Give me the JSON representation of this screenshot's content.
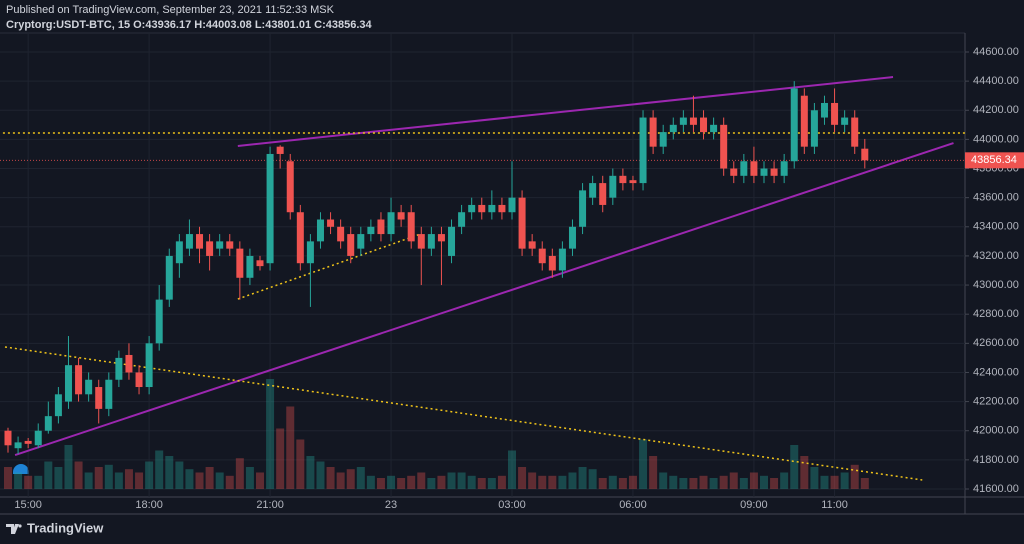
{
  "chart_data": {
    "type": "candlestick",
    "title": "Published on TradingView.com, September 23, 2021 11:52:33 MSK",
    "subtitle": "Cryptorg:USDT-BTC, 15 O:43936.17 H:44003.08 L:43801.01 C:43856.34",
    "brand": "TradingView",
    "categories": [
      null,
      null,
      "15:00",
      null,
      null,
      null,
      null,
      null,
      null,
      null,
      null,
      null,
      null,
      null,
      "18:00",
      null,
      null,
      null,
      null,
      null,
      null,
      null,
      null,
      null,
      null,
      null,
      "21:00",
      null,
      null,
      null,
      null,
      null,
      null,
      null,
      null,
      null,
      null,
      null,
      "23",
      null,
      null,
      null,
      null,
      null,
      null,
      null,
      null,
      null,
      null,
      null,
      "03:00",
      null,
      null,
      null,
      null,
      null,
      null,
      null,
      null,
      null,
      null,
      null,
      "06:00",
      null,
      null,
      null,
      null,
      null,
      null,
      null,
      null,
      null,
      null,
      null,
      "09:00",
      null,
      null,
      null,
      null,
      null,
      null,
      null,
      "11:00",
      null,
      null,
      null
    ],
    "open": [
      42000,
      41880,
      41930,
      41900,
      42000,
      42100,
      42200,
      42450,
      42250,
      42300,
      42150,
      42350,
      42520,
      42400,
      42300,
      42600,
      42900,
      43150,
      43250,
      43350,
      43300,
      43250,
      43300,
      43250,
      43050,
      43170,
      43150,
      43950,
      43850,
      43500,
      43150,
      43300,
      43450,
      43400,
      43350,
      43250,
      43350,
      43450,
      43350,
      43500,
      43500,
      43350,
      43250,
      43350,
      43200,
      43400,
      43500,
      43550,
      43500,
      43550,
      43500,
      43600,
      43300,
      43250,
      43200,
      43100,
      43250,
      43400,
      43600,
      43700,
      43600,
      43750,
      43720,
      43700,
      44150,
      43950,
      44050,
      44100,
      44150,
      44150,
      44050,
      44100,
      43800,
      43750,
      43850,
      43750,
      43800,
      43750,
      43850,
      44300,
      43950,
      44150,
      44250,
      44100,
      44150,
      43936.17
    ],
    "high": [
      42020,
      41960,
      41950,
      42050,
      42200,
      42300,
      42650,
      42500,
      42400,
      42350,
      42400,
      42550,
      42600,
      42450,
      42650,
      43000,
      43250,
      43350,
      43450,
      43400,
      43350,
      43350,
      43350,
      43300,
      43250,
      43200,
      43950,
      43960,
      43900,
      43550,
      43350,
      43500,
      43500,
      43450,
      43400,
      43400,
      43450,
      43500,
      43600,
      43550,
      43550,
      43400,
      43400,
      43400,
      43450,
      43550,
      43600,
      43600,
      43650,
      43600,
      43850,
      43650,
      43350,
      43300,
      43250,
      43300,
      43450,
      43700,
      43750,
      43750,
      43800,
      43800,
      43750,
      44200,
      44200,
      44100,
      44150,
      44200,
      44300,
      44200,
      44150,
      44150,
      43850,
      43900,
      43950,
      43850,
      43850,
      43900,
      44400,
      44350,
      44250,
      44300,
      44350,
      44200,
      44200,
      44003.08
    ],
    "low": [
      41850,
      41840,
      41880,
      41880,
      41980,
      42050,
      42150,
      42200,
      42200,
      42050,
      42100,
      42300,
      42350,
      42250,
      42250,
      42550,
      42850,
      43050,
      43200,
      43150,
      43100,
      43200,
      43200,
      42900,
      43000,
      43100,
      43100,
      43800,
      43450,
      43100,
      42850,
      43250,
      43350,
      43250,
      43150,
      43200,
      43300,
      43300,
      43300,
      43400,
      43250,
      43000,
      43200,
      43000,
      43150,
      43350,
      43450,
      43450,
      43450,
      43450,
      43450,
      43200,
      43200,
      43100,
      43050,
      43050,
      43200,
      43350,
      43550,
      43500,
      43550,
      43650,
      43650,
      43650,
      43900,
      43900,
      44000,
      44050,
      44050,
      44000,
      44000,
      43750,
      43700,
      43700,
      43700,
      43700,
      43700,
      43700,
      43800,
      43900,
      43900,
      44100,
      44050,
      44050,
      43900,
      43801.01
    ],
    "close": [
      41900,
      41920,
      41910,
      42000,
      42100,
      42250,
      42450,
      42250,
      42350,
      42150,
      42350,
      42500,
      42400,
      42300,
      42600,
      42900,
      43200,
      43300,
      43350,
      43250,
      43200,
      43300,
      43250,
      43050,
      43200,
      43130,
      43900,
      43900,
      43500,
      43150,
      43300,
      43450,
      43400,
      43300,
      43200,
      43350,
      43400,
      43350,
      43500,
      43450,
      43300,
      43250,
      43350,
      43300,
      43400,
      43500,
      43550,
      43500,
      43550,
      43500,
      43600,
      43250,
      43250,
      43150,
      43100,
      43250,
      43400,
      43650,
      43700,
      43550,
      43750,
      43700,
      43700,
      44150,
      43950,
      44050,
      44100,
      44150,
      44100,
      44050,
      44100,
      43800,
      43750,
      43850,
      43750,
      43800,
      43750,
      43850,
      44350,
      43950,
      44200,
      44250,
      44100,
      44150,
      43950,
      43856.34
    ],
    "volume": [
      20,
      15,
      12,
      12,
      25,
      20,
      40,
      25,
      15,
      20,
      22,
      15,
      18,
      15,
      25,
      35,
      30,
      25,
      18,
      15,
      20,
      15,
      12,
      28,
      20,
      15,
      100,
      55,
      75,
      45,
      30,
      25,
      20,
      15,
      18,
      20,
      12,
      10,
      12,
      10,
      12,
      15,
      10,
      12,
      15,
      15,
      12,
      10,
      10,
      12,
      35,
      20,
      15,
      12,
      12,
      12,
      15,
      20,
      18,
      10,
      12,
      10,
      12,
      45,
      30,
      15,
      12,
      10,
      10,
      12,
      10,
      12,
      15,
      10,
      15,
      12,
      10,
      15,
      40,
      30,
      20,
      12,
      12,
      15,
      22,
      10
    ],
    "up_color": "#26a69a",
    "down_color": "#ef5350",
    "ylim": [
      41545,
      44751
    ],
    "yticks": [
      {
        "value": 41600,
        "label": "41600.00"
      },
      {
        "value": 41800,
        "label": "41800.00"
      },
      {
        "value": 42000,
        "label": "42000.00"
      },
      {
        "value": 42200,
        "label": "42200.00"
      },
      {
        "value": 42400,
        "label": "42400.00"
      },
      {
        "value": 42600,
        "label": "42600.00"
      },
      {
        "value": 42800,
        "label": "42800.00"
      },
      {
        "value": 43000,
        "label": "43000.00"
      },
      {
        "value": 43200,
        "label": "43200.00"
      },
      {
        "value": 43400,
        "label": "43400.00"
      },
      {
        "value": 43600,
        "label": "43600.00"
      },
      {
        "value": 43800,
        "label": "43800.00"
      },
      {
        "value": 44000,
        "label": "44000.00"
      },
      {
        "value": 44200,
        "label": "44200.00"
      },
      {
        "value": 44400,
        "label": "44400.00"
      },
      {
        "value": 44600,
        "label": "44600.00"
      }
    ],
    "grid": true,
    "lines": [
      {
        "x1": 22.8,
        "y1": 43955,
        "x2": 87.8,
        "y2": 44428,
        "color": "#9c27b0",
        "style": "solid"
      },
      {
        "x1": 0.7,
        "y1": 41833,
        "x2": 93.8,
        "y2": 43975,
        "color": "#9c27b0",
        "style": "solid"
      },
      {
        "x1": -0.3,
        "y1": 42575,
        "x2": 90.7,
        "y2": 41662,
        "color": "#f0c419",
        "style": "dotted"
      },
      {
        "x1": 22.8,
        "y1": 42904,
        "x2": 40.9,
        "y2": 43350,
        "color": "#f0c419",
        "style": "dotted"
      },
      {
        "x1": -1,
        "y1": 44044,
        "x2": 95,
        "y2": 44044,
        "color": "#f0c419",
        "style": "dotted"
      }
    ]
  }
}
